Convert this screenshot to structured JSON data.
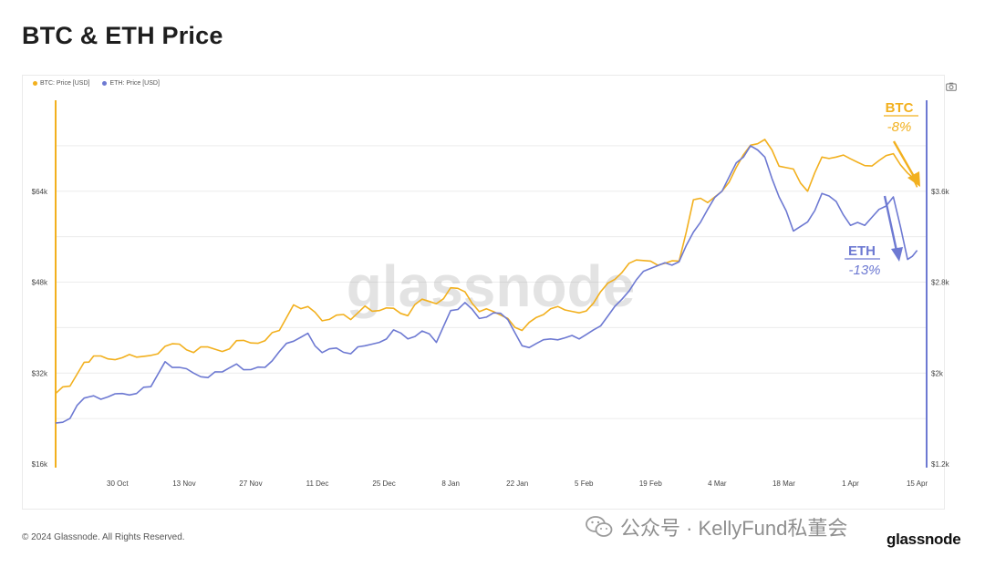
{
  "title": "BTC & ETH Price",
  "legend": {
    "btc": "BTC: Price [USD]",
    "eth": "ETH: Price [USD]"
  },
  "colors": {
    "btc": "#f2b01e",
    "eth": "#6d79d2",
    "grid": "#ececec"
  },
  "icons": {
    "camera": "camera-icon",
    "wechat": "wechat-icon"
  },
  "watermark": "glassnode",
  "annotations": {
    "btc_label": "BTC",
    "btc_change": "-8%",
    "eth_label": "ETH",
    "eth_change": "-13%"
  },
  "footer": {
    "copyright": "© 2024 Glassnode. All Rights Reserved.",
    "brand": "glassnode",
    "wechat": "公众号 · KellyFund私董会"
  },
  "chart_data": {
    "type": "line",
    "x_ticks": [
      "30 Oct",
      "13 Nov",
      "27 Nov",
      "11 Dec",
      "25 Dec",
      "8 Jan",
      "22 Jan",
      "5 Feb",
      "19 Feb",
      "4 Mar",
      "18 Mar",
      "1 Apr",
      "15 Apr"
    ],
    "y_left": {
      "ticks": [
        "$16k",
        "$32k",
        "$48k",
        "$64k"
      ],
      "values": [
        16000,
        32000,
        48000,
        64000
      ]
    },
    "y_right": {
      "ticks": [
        "$1.2k",
        "$2k",
        "$2.8k",
        "$3.6k"
      ],
      "values": [
        1200,
        2000,
        2800,
        3600
      ]
    },
    "x_start": "2023-10-17",
    "x_end": "2024-04-17",
    "series": [
      {
        "name": "BTC: Price [USD]",
        "axis": "left",
        "points": [
          [
            "2023-10-17",
            28400
          ],
          [
            "2023-10-20",
            29700
          ],
          [
            "2023-10-23",
            33900
          ],
          [
            "2023-10-25",
            35000
          ],
          [
            "2023-10-28",
            34500
          ],
          [
            "2023-10-31",
            34700
          ],
          [
            "2023-11-03",
            34800
          ],
          [
            "2023-11-06",
            35100
          ],
          [
            "2023-11-09",
            36700
          ],
          [
            "2023-11-12",
            37100
          ],
          [
            "2023-11-15",
            35600
          ],
          [
            "2023-11-18",
            36600
          ],
          [
            "2023-11-21",
            35800
          ],
          [
            "2023-11-24",
            37700
          ],
          [
            "2023-11-27",
            37300
          ],
          [
            "2023-11-30",
            37700
          ],
          [
            "2023-12-03",
            39500
          ],
          [
            "2023-12-06",
            44000
          ],
          [
            "2023-12-09",
            43700
          ],
          [
            "2023-12-12",
            41200
          ],
          [
            "2023-12-15",
            42200
          ],
          [
            "2023-12-18",
            41400
          ],
          [
            "2023-12-21",
            43800
          ],
          [
            "2023-12-24",
            43000
          ],
          [
            "2023-12-27",
            43400
          ],
          [
            "2023-12-30",
            42100
          ],
          [
            "2024-01-02",
            45000
          ],
          [
            "2024-01-05",
            44200
          ],
          [
            "2024-01-08",
            47000
          ],
          [
            "2024-01-11",
            46300
          ],
          [
            "2024-01-14",
            42800
          ],
          [
            "2024-01-17",
            42800
          ],
          [
            "2024-01-20",
            41600
          ],
          [
            "2024-01-23",
            39500
          ],
          [
            "2024-01-26",
            41800
          ],
          [
            "2024-01-29",
            43300
          ],
          [
            "2024-02-01",
            43100
          ],
          [
            "2024-02-04",
            42600
          ],
          [
            "2024-02-07",
            44300
          ],
          [
            "2024-02-10",
            47800
          ],
          [
            "2024-02-13",
            49700
          ],
          [
            "2024-02-16",
            51900
          ],
          [
            "2024-02-19",
            51700
          ],
          [
            "2024-02-22",
            51300
          ],
          [
            "2024-02-25",
            51700
          ],
          [
            "2024-02-28",
            62500
          ],
          [
            "2024-03-02",
            62000
          ],
          [
            "2024-03-05",
            64000
          ],
          [
            "2024-03-08",
            68200
          ],
          [
            "2024-03-11",
            72100
          ],
          [
            "2024-03-14",
            73100
          ],
          [
            "2024-03-17",
            68400
          ],
          [
            "2024-03-20",
            67900
          ],
          [
            "2024-03-23",
            64000
          ],
          [
            "2024-03-26",
            70000
          ],
          [
            "2024-03-29",
            70000
          ],
          [
            "2024-04-01",
            69700
          ],
          [
            "2024-04-04",
            68500
          ],
          [
            "2024-04-07",
            69400
          ],
          [
            "2024-04-10",
            70600
          ],
          [
            "2024-04-13",
            67200
          ],
          [
            "2024-04-15",
            64700
          ]
        ]
      },
      {
        "name": "ETH: Price [USD]",
        "axis": "right",
        "points": [
          [
            "2023-10-17",
            1560
          ],
          [
            "2023-10-20",
            1600
          ],
          [
            "2023-10-23",
            1780
          ],
          [
            "2023-10-25",
            1800
          ],
          [
            "2023-10-28",
            1790
          ],
          [
            "2023-10-31",
            1820
          ],
          [
            "2023-11-03",
            1820
          ],
          [
            "2023-11-06",
            1880
          ],
          [
            "2023-11-09",
            2100
          ],
          [
            "2023-11-12",
            2050
          ],
          [
            "2023-11-15",
            2000
          ],
          [
            "2023-11-18",
            1960
          ],
          [
            "2023-11-21",
            2010
          ],
          [
            "2023-11-24",
            2080
          ],
          [
            "2023-11-27",
            2030
          ],
          [
            "2023-11-30",
            2050
          ],
          [
            "2023-12-03",
            2190
          ],
          [
            "2023-12-06",
            2280
          ],
          [
            "2023-12-09",
            2350
          ],
          [
            "2023-12-12",
            2180
          ],
          [
            "2023-12-15",
            2220
          ],
          [
            "2023-12-18",
            2170
          ],
          [
            "2023-12-21",
            2240
          ],
          [
            "2023-12-24",
            2270
          ],
          [
            "2023-12-27",
            2380
          ],
          [
            "2023-12-30",
            2300
          ],
          [
            "2024-01-02",
            2370
          ],
          [
            "2024-01-05",
            2270
          ],
          [
            "2024-01-08",
            2550
          ],
          [
            "2024-01-11",
            2620
          ],
          [
            "2024-01-14",
            2480
          ],
          [
            "2024-01-17",
            2530
          ],
          [
            "2024-01-20",
            2470
          ],
          [
            "2024-01-23",
            2240
          ],
          [
            "2024-01-26",
            2260
          ],
          [
            "2024-01-29",
            2300
          ],
          [
            "2024-02-01",
            2310
          ],
          [
            "2024-02-04",
            2300
          ],
          [
            "2024-02-07",
            2380
          ],
          [
            "2024-02-10",
            2500
          ],
          [
            "2024-02-13",
            2650
          ],
          [
            "2024-02-16",
            2820
          ],
          [
            "2024-02-19",
            2920
          ],
          [
            "2024-02-22",
            2970
          ],
          [
            "2024-02-25",
            2980
          ],
          [
            "2024-02-28",
            3240
          ],
          [
            "2024-03-02",
            3440
          ],
          [
            "2024-03-05",
            3600
          ],
          [
            "2024-03-08",
            3850
          ],
          [
            "2024-03-11",
            4000
          ],
          [
            "2024-03-14",
            3900
          ],
          [
            "2024-03-17",
            3550
          ],
          [
            "2024-03-20",
            3250
          ],
          [
            "2024-03-23",
            3330
          ],
          [
            "2024-03-26",
            3580
          ],
          [
            "2024-03-29",
            3510
          ],
          [
            "2024-04-01",
            3300
          ],
          [
            "2024-04-04",
            3300
          ],
          [
            "2024-04-07",
            3440
          ],
          [
            "2024-04-10",
            3550
          ],
          [
            "2024-04-13",
            3000
          ],
          [
            "2024-04-15",
            3080
          ]
        ]
      }
    ]
  }
}
